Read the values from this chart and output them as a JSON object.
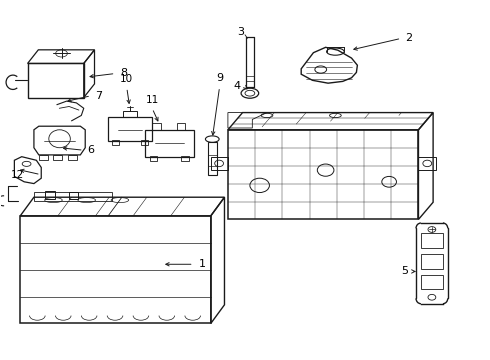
{
  "bg_color": "#ffffff",
  "line_color": "#1a1a1a",
  "lw_main": 0.9,
  "lw_thin": 0.5,
  "figsize": [
    4.9,
    3.6
  ],
  "dpi": 100,
  "labels": {
    "1": [
      0.395,
      0.265,
      0.355,
      0.265,
      "left"
    ],
    "2": [
      0.875,
      0.895,
      0.81,
      0.87,
      "left"
    ],
    "3": [
      0.53,
      0.87,
      0.53,
      0.84,
      "center"
    ],
    "4": [
      0.548,
      0.79,
      0.548,
      0.76,
      "center"
    ],
    "5": [
      0.858,
      0.32,
      0.878,
      0.32,
      "right"
    ],
    "6": [
      0.165,
      0.58,
      0.155,
      0.565,
      "center"
    ],
    "7": [
      0.202,
      0.695,
      0.175,
      0.68,
      "left"
    ],
    "8": [
      0.245,
      0.895,
      0.21,
      0.88,
      "left"
    ],
    "9": [
      0.448,
      0.81,
      0.448,
      0.79,
      "center"
    ],
    "10": [
      0.258,
      0.75,
      0.268,
      0.73,
      "center"
    ],
    "11": [
      0.31,
      0.7,
      0.318,
      0.68,
      "center"
    ],
    "12": [
      0.055,
      0.545,
      0.09,
      0.53,
      "right"
    ]
  }
}
